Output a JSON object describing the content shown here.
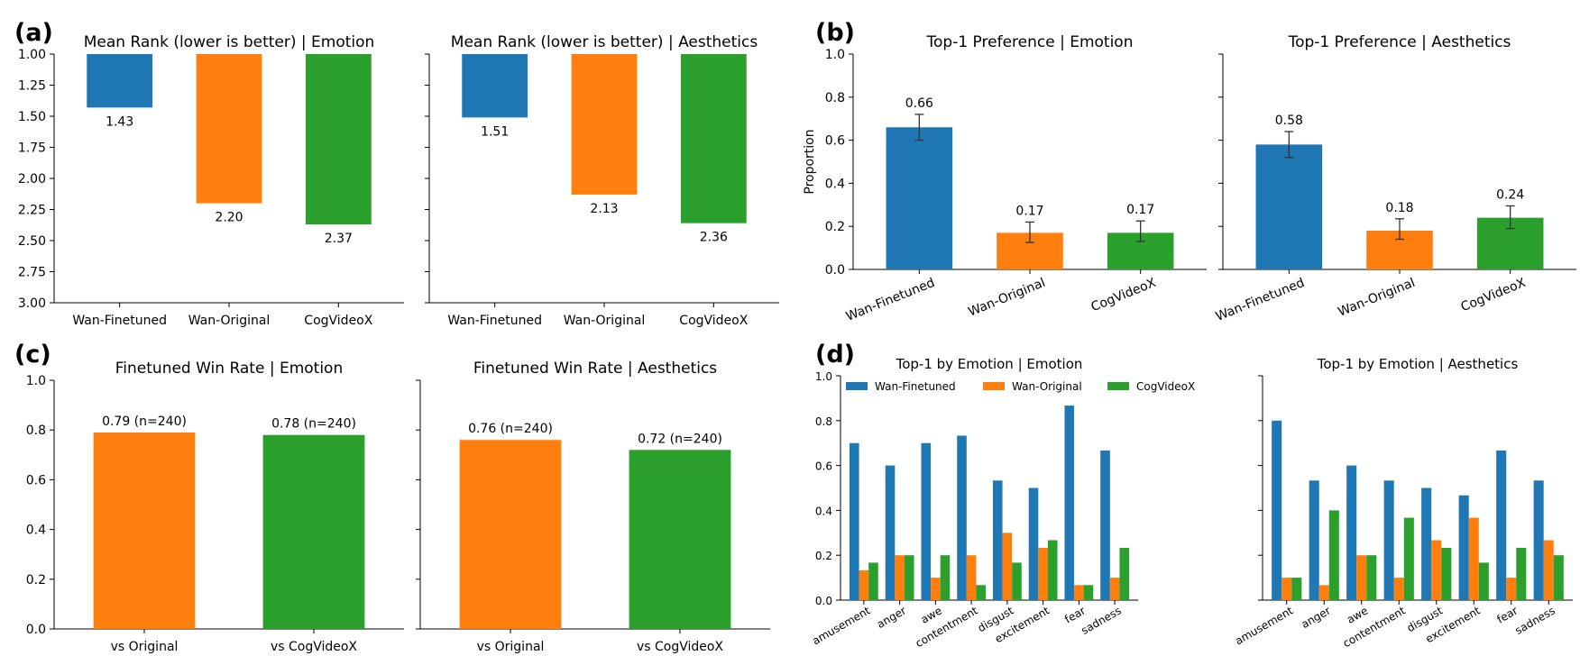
{
  "colors": {
    "wan_finetuned": "#1f77b4",
    "wan_original": "#ff7f0e",
    "cogvideox": "#2ca02c",
    "axis": "#000000",
    "errorbar": "#333333"
  },
  "panel_labels": {
    "a": "(a)",
    "b": "(b)",
    "c": "(c)",
    "d": "(d)"
  },
  "chart_data": [
    {
      "id": "a_emotion",
      "type": "bar",
      "title": "Mean Rank (lower is better) | Emotion",
      "categories": [
        "Wan-Finetuned",
        "Wan-Original",
        "CogVideoX"
      ],
      "values": [
        1.43,
        2.2,
        2.37
      ],
      "value_labels": [
        "1.43",
        "2.20",
        "2.37"
      ],
      "ylim": [
        1.0,
        3.0
      ],
      "y_inverted": true,
      "yticks": [
        "1.00",
        "1.25",
        "1.50",
        "1.75",
        "2.00",
        "2.25",
        "2.50",
        "2.75",
        "3.00"
      ],
      "xlabel": "",
      "ylabel": ""
    },
    {
      "id": "a_aesthetics",
      "type": "bar",
      "title": "Mean Rank (lower is better) | Aesthetics",
      "categories": [
        "Wan-Finetuned",
        "Wan-Original",
        "CogVideoX"
      ],
      "values": [
        1.51,
        2.13,
        2.36
      ],
      "value_labels": [
        "1.51",
        "2.13",
        "2.36"
      ],
      "ylim": [
        1.0,
        3.0
      ],
      "y_inverted": true,
      "xlabel": "",
      "ylabel": ""
    },
    {
      "id": "b_emotion",
      "type": "bar",
      "title": "Top-1 Preference | Emotion",
      "categories": [
        "Wan-Finetuned",
        "Wan-Original",
        "CogVideoX"
      ],
      "values": [
        0.66,
        0.17,
        0.17
      ],
      "value_labels": [
        "0.66",
        "0.17",
        "0.17"
      ],
      "error_low": [
        0.6,
        0.125,
        0.13
      ],
      "error_high": [
        0.72,
        0.22,
        0.225
      ],
      "ylim": [
        0.0,
        1.0
      ],
      "yticks": [
        "0.0",
        "0.2",
        "0.4",
        "0.6",
        "0.8",
        "1.0"
      ],
      "xlabel": "",
      "ylabel": "Proportion"
    },
    {
      "id": "b_aesthetics",
      "type": "bar",
      "title": "Top-1 Preference | Aesthetics",
      "categories": [
        "Wan-Finetuned",
        "Wan-Original",
        "CogVideoX"
      ],
      "values": [
        0.58,
        0.18,
        0.24
      ],
      "value_labels": [
        "0.58",
        "0.18",
        "0.24"
      ],
      "error_low": [
        0.52,
        0.14,
        0.19
      ],
      "error_high": [
        0.64,
        0.235,
        0.295
      ],
      "ylim": [
        0.0,
        1.0
      ],
      "xlabel": "",
      "ylabel": ""
    },
    {
      "id": "c_emotion",
      "type": "bar",
      "title": "Finetuned Win Rate | Emotion",
      "categories": [
        "vs Original",
        "vs CogVideoX"
      ],
      "values": [
        0.79,
        0.78
      ],
      "value_labels": [
        "0.79 (n=240)",
        "0.78 (n=240)"
      ],
      "ylim": [
        0.0,
        1.0
      ],
      "yticks": [
        "0.0",
        "0.2",
        "0.4",
        "0.6",
        "0.8",
        "1.0"
      ],
      "xlabel": "",
      "ylabel": ""
    },
    {
      "id": "c_aesthetics",
      "type": "bar",
      "title": "Finetuned Win Rate | Aesthetics",
      "categories": [
        "vs Original",
        "vs CogVideoX"
      ],
      "values": [
        0.76,
        0.72
      ],
      "value_labels": [
        "0.76 (n=240)",
        "0.72 (n=240)"
      ],
      "ylim": [
        0.0,
        1.0
      ],
      "xlabel": "",
      "ylabel": ""
    },
    {
      "id": "d_emotion",
      "type": "bar",
      "title": "Top-1 by Emotion | Emotion",
      "categories": [
        "amusement",
        "anger",
        "awe",
        "contentment",
        "disgust",
        "excitement",
        "fear",
        "sadness"
      ],
      "series": [
        {
          "name": "Wan-Finetuned",
          "values": [
            0.7,
            0.6,
            0.7,
            0.733,
            0.533,
            0.5,
            0.867,
            0.667
          ]
        },
        {
          "name": "Wan-Original",
          "values": [
            0.133,
            0.2,
            0.1,
            0.2,
            0.3,
            0.233,
            0.067,
            0.1
          ]
        },
        {
          "name": "CogVideoX",
          "values": [
            0.167,
            0.2,
            0.2,
            0.067,
            0.167,
            0.267,
            0.067,
            0.233
          ]
        }
      ],
      "legend": [
        "Wan-Finetuned",
        "Wan-Original",
        "CogVideoX"
      ],
      "ylim": [
        0.0,
        1.0
      ],
      "yticks": [
        "0.0",
        "0.2",
        "0.4",
        "0.6",
        "0.8",
        "1.0"
      ],
      "xlabel": "",
      "ylabel": ""
    },
    {
      "id": "d_aesthetics",
      "type": "bar",
      "title": "Top-1 by Emotion | Aesthetics",
      "categories": [
        "amusement",
        "anger",
        "awe",
        "contentment",
        "disgust",
        "excitement",
        "fear",
        "sadness"
      ],
      "series": [
        {
          "name": "Wan-Finetuned",
          "values": [
            0.8,
            0.533,
            0.6,
            0.533,
            0.5,
            0.467,
            0.667,
            0.533
          ]
        },
        {
          "name": "Wan-Original",
          "values": [
            0.1,
            0.067,
            0.2,
            0.1,
            0.267,
            0.367,
            0.1,
            0.267
          ]
        },
        {
          "name": "CogVideoX",
          "values": [
            0.1,
            0.4,
            0.2,
            0.367,
            0.233,
            0.167,
            0.233,
            0.2
          ]
        }
      ],
      "ylim": [
        0.0,
        1.0
      ],
      "xlabel": "",
      "ylabel": ""
    }
  ]
}
